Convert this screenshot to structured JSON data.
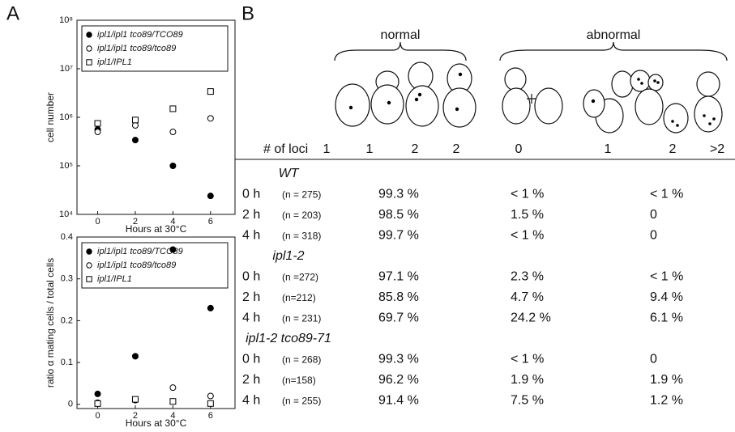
{
  "panel_labels": [
    "A",
    "B"
  ],
  "chart_data": [
    {
      "type": "scatter",
      "x_label": "Hours at 30°C",
      "y_label": "cell number",
      "log_y": true,
      "x": [
        0,
        2,
        4,
        6
      ],
      "xlim": [
        -1.1,
        7.3
      ],
      "xticks": [
        0,
        2,
        4,
        6
      ],
      "ylim": [
        10000,
        100000000
      ],
      "yticks": [
        {
          "value": 10000,
          "label": "10⁴"
        },
        {
          "value": 100000,
          "label": "10⁵"
        },
        {
          "value": 1000000,
          "label": "10⁶"
        },
        {
          "value": 10000000,
          "label": "10⁷"
        },
        {
          "value": 100000000,
          "label": "10⁸"
        }
      ],
      "legend": "upper left",
      "series": [
        {
          "name": "ipl1/ipl1  tco89/TCO89",
          "marker": "filled circle",
          "color": "#000000",
          "values": [
            560000,
            340000,
            100000,
            24000
          ]
        },
        {
          "name": "ipl1/ipl1  tco89/tco89",
          "marker": "open circle",
          "color": "#000000",
          "values": [
            500000,
            680000,
            500000,
            950000
          ]
        },
        {
          "name": "ipl1/IPL1",
          "marker": "open square",
          "color": "#000000",
          "values": [
            750000,
            880000,
            1500000,
            3400000
          ]
        }
      ]
    },
    {
      "type": "scatter",
      "x_label": "Hours at 30°C",
      "y_label": "ratio α mating cells / total cells",
      "log_y": false,
      "x": [
        0,
        2,
        4,
        6
      ],
      "xlim": [
        -1.1,
        7.3
      ],
      "xticks": [
        0,
        2,
        4,
        6
      ],
      "ylim": [
        -0.01,
        0.4
      ],
      "yticks": [
        0,
        0.1,
        0.2,
        0.3,
        0.4
      ],
      "legend": "upper left",
      "series": [
        {
          "name": "ipl1/ipl1  tco89/TCO89",
          "marker": "filled circle",
          "color": "#000000",
          "values": [
            0.025,
            0.115,
            0.37,
            0.23
          ]
        },
        {
          "name": "ipl1/ipl1  tco89/tco89",
          "marker": "open circle",
          "color": "#000000",
          "values": [
            0.004,
            0.01,
            0.04,
            0.02
          ]
        },
        {
          "name": "ipl1/IPL1",
          "marker": "open square",
          "color": "#000000",
          "values": [
            0.002,
            0.012,
            0.007,
            0.002
          ]
        }
      ]
    }
  ],
  "table": {
    "header_groups": [
      "normal",
      "abnormal"
    ],
    "loci_label": "# of loci",
    "loci": [
      "1",
      "1",
      "2",
      "2",
      "0",
      "1",
      "2",
      ">2"
    ],
    "groups": [
      {
        "name": "WT",
        "rows": [
          {
            "time": "0 h",
            "n": "(n = 275)",
            "values": [
              "99.3 %",
              "< 1 %",
              "< 1 %"
            ]
          },
          {
            "time": "2 h",
            "n": "(n = 203)",
            "values": [
              "98.5 %",
              "1.5 %",
              "0"
            ]
          },
          {
            "time": "4 h",
            "n": "(n = 318)",
            "values": [
              "99.7 %",
              "< 1 %",
              "0"
            ]
          }
        ]
      },
      {
        "name": "ipl1-2",
        "rows": [
          {
            "time": "0 h",
            "n": "(n =272)",
            "values": [
              "97.1 %",
              "2.3 %",
              "< 1 %"
            ]
          },
          {
            "time": "2 h",
            "n": "(n=212)",
            "values": [
              "85.8 %",
              "4.7 %",
              "9.4 %"
            ]
          },
          {
            "time": "4 h",
            "n": "(n = 231)",
            "values": [
              "69.7 %",
              "24.2 %",
              "6.1 %"
            ]
          }
        ]
      },
      {
        "name": "ipl1-2 tco89-71",
        "rows": [
          {
            "time": "0 h",
            "n": "(n = 268)",
            "values": [
              "99.3 %",
              "< 1 %",
              "0"
            ]
          },
          {
            "time": "2 h",
            "n": "(n=158)",
            "values": [
              "96.2 %",
              "1.9 %",
              "1.9 %"
            ]
          },
          {
            "time": "4 h",
            "n": "(n = 255)",
            "values": [
              "91.4 %",
              "7.5 %",
              "1.2 %"
            ]
          }
        ]
      }
    ]
  }
}
